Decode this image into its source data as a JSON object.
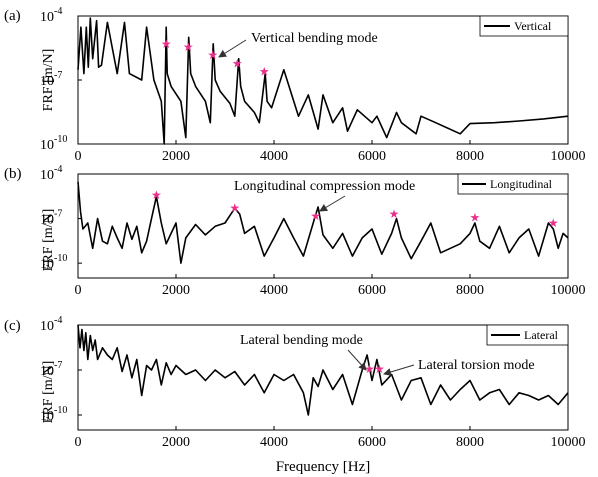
{
  "figure": {
    "xlabel": "Frequency  [Hz]",
    "colors": {
      "line": "#000000",
      "marker": "#e8308c",
      "frame": "#000000",
      "background": "#ffffff"
    }
  },
  "chart_data": [
    {
      "type": "line",
      "panel_label": "(a)",
      "ylabel": "FRF  [m/N]",
      "xlabel": "",
      "y_scale": "log",
      "xlim": [
        0,
        10000
      ],
      "ylim": [
        1e-10,
        0.0001
      ],
      "x_ticks": [
        "0",
        "2000",
        "4000",
        "6000",
        "8000",
        "10000"
      ],
      "y_ticks": [
        {
          "base": "10",
          "exp": "-4"
        },
        {
          "base": "10",
          "exp": "-7"
        },
        {
          "base": "10",
          "exp": "-10"
        }
      ],
      "legend": {
        "label": "Vertical",
        "position": "top-right"
      },
      "series": [
        {
          "name": "Vertical",
          "x": [
            0,
            60,
            120,
            170,
            210,
            250,
            300,
            380,
            420,
            480,
            600,
            800,
            950,
            1050,
            1300,
            1400,
            1550,
            1700,
            1760,
            1800,
            1820,
            1900,
            2100,
            2200,
            2260,
            2300,
            2400,
            2600,
            2700,
            2760,
            2800,
            2900,
            3100,
            3200,
            3280,
            3320,
            3400,
            3600,
            3700,
            3820,
            3860,
            3950,
            4200,
            4500,
            4700,
            4900,
            5000,
            5200,
            5400,
            5500,
            5700,
            6000,
            6100,
            6300,
            6500,
            6600,
            6900,
            7000,
            7300,
            7800,
            8000,
            8500,
            9000,
            9500,
            10000
          ],
          "y": [
            3e-07,
            3e-05,
            2e-07,
            3e-05,
            4e-07,
            8e-05,
            1e-06,
            6e-05,
            4e-07,
            5e-07,
            5e-05,
            2e-07,
            5e-05,
            2e-07,
            1e-07,
            3e-05,
            1e-07,
            1e-08,
            1e-10,
            3e-05,
            2e-07,
            5e-08,
            1e-08,
            2e-10,
            1e-05,
            2e-07,
            5e-08,
            1e-08,
            1e-09,
            5e-06,
            1e-07,
            3e-08,
            8e-09,
            2e-09,
            1e-06,
            5e-08,
            1e-08,
            3e-09,
            1e-09,
            2e-07,
            1e-08,
            5e-09,
            3e-07,
            2e-09,
            2e-08,
            5e-10,
            2e-08,
            1e-09,
            5e-09,
            4e-10,
            4e-09,
            1e-09,
            2e-09,
            2e-10,
            3e-09,
            1e-09,
            3e-10,
            2e-09,
            1e-09,
            3e-10,
            9e-10,
            1e-09,
            1.2e-09,
            1.5e-09,
            2e-09
          ]
        }
      ],
      "markers": {
        "symbol": "★",
        "x": [
          1800,
          2250,
          2750,
          3250,
          3800
        ],
        "y": [
          5e-06,
          3.5e-06,
          1.5e-06,
          6e-07,
          2.5e-07
        ]
      },
      "annotations": [
        {
          "text": "Vertical  bending  mode",
          "points_to": {
            "x": 2750,
            "y": 1.5e-06
          }
        }
      ]
    },
    {
      "type": "line",
      "panel_label": "(b)",
      "ylabel": "FRF  [m/N]",
      "xlabel": "",
      "y_scale": "log",
      "xlim": [
        0,
        10000
      ],
      "ylim": [
        1e-11,
        0.0001
      ],
      "x_ticks": [
        "0",
        "2000",
        "4000",
        "6000",
        "8000",
        "10000"
      ],
      "y_ticks": [
        {
          "base": "10",
          "exp": "-4"
        },
        {
          "base": "10",
          "exp": "-7"
        },
        {
          "base": "10",
          "exp": "-10"
        }
      ],
      "legend": {
        "label": "Longitudinal",
        "position": "top-right"
      },
      "series": [
        {
          "name": "Longitudinal",
          "x": [
            0,
            50,
            100,
            200,
            300,
            400,
            500,
            600,
            700,
            800,
            900,
            1000,
            1100,
            1200,
            1300,
            1400,
            1500,
            1600,
            1700,
            1800,
            1900,
            2000,
            2100,
            2200,
            2400,
            2600,
            2800,
            3000,
            3200,
            3300,
            3400,
            3600,
            3800,
            4000,
            4200,
            4400,
            4600,
            4800,
            4900,
            5000,
            5200,
            5400,
            5600,
            5800,
            6000,
            6200,
            6400,
            6500,
            6600,
            6800,
            7000,
            7200,
            7400,
            7600,
            7800,
            8000,
            8100,
            8200,
            8400,
            8600,
            8800,
            9000,
            9200,
            9400,
            9600,
            9700,
            9800,
            9900,
            10000
          ],
          "y": [
            3e-05,
            3e-07,
            2e-08,
            5e-08,
            1e-09,
            1e-07,
            3e-09,
            2e-09,
            3e-08,
            5e-09,
            1e-09,
            5e-08,
            4e-09,
            3e-08,
            5e-10,
            3e-09,
            1e-07,
            3e-06,
            5e-08,
            2e-09,
            1e-08,
            5e-08,
            1e-10,
            5e-09,
            4e-08,
            8e-09,
            3e-08,
            5e-08,
            5e-07,
            2e-07,
            1e-08,
            3e-08,
            3e-10,
            5e-09,
            1e-07,
            5e-09,
            3e-10,
            5e-08,
            6e-07,
            8e-09,
            1e-09,
            1e-08,
            3e-10,
            5e-09,
            2e-08,
            4e-10,
            1e-08,
            1e-07,
            5e-09,
            2e-10,
            3e-09,
            5e-08,
            5e-10,
            1e-09,
            2e-09,
            1e-08,
            5e-08,
            3e-09,
            1e-09,
            3e-08,
            5e-10,
            5e-09,
            2e-08,
            3e-10,
            5e-08,
            2e-08,
            1e-09,
            1e-08,
            5e-09
          ]
        }
      ],
      "markers": {
        "symbol": "★",
        "x": [
          1600,
          3200,
          4850,
          6450,
          8100,
          9700
        ],
        "y": [
          4e-06,
          5e-07,
          1.5e-07,
          2e-07,
          1.2e-07,
          5e-08
        ]
      },
      "annotations": [
        {
          "text": "Longitudinal  compression  mode",
          "points_to": {
            "x": 4900,
            "y": 2e-07
          }
        }
      ]
    },
    {
      "type": "line",
      "panel_label": "(c)",
      "ylabel": "FRF  [m/N]",
      "xlabel": "Frequency  [Hz]",
      "y_scale": "log",
      "xlim": [
        0,
        10000
      ],
      "ylim": [
        1e-11,
        0.0001
      ],
      "x_ticks": [
        "0",
        "2000",
        "4000",
        "6000",
        "8000",
        "10000"
      ],
      "y_ticks": [
        {
          "base": "10",
          "exp": "-4"
        },
        {
          "base": "10",
          "exp": "-7"
        },
        {
          "base": "10",
          "exp": "-10"
        }
      ],
      "legend": {
        "label": "Lateral",
        "position": "top-right"
      },
      "series": [
        {
          "name": "Lateral",
          "x": [
            0,
            40,
            80,
            120,
            160,
            200,
            250,
            300,
            350,
            400,
            500,
            600,
            700,
            800,
            900,
            1000,
            1100,
            1200,
            1300,
            1400,
            1500,
            1600,
            1700,
            1800,
            1900,
            2000,
            2200,
            2400,
            2600,
            2800,
            3000,
            3200,
            3400,
            3600,
            3800,
            4000,
            4200,
            4400,
            4600,
            4700,
            4800,
            4900,
            5000,
            5200,
            5400,
            5600,
            5800,
            5900,
            6000,
            6100,
            6200,
            6400,
            6600,
            6800,
            7000,
            7200,
            7400,
            7600,
            7800,
            8000,
            8200,
            8400,
            8600,
            8800,
            9000,
            9200,
            9400,
            9600,
            9800,
            10000
          ],
          "y": [
            0.0001,
            3e-06,
            5e-05,
            2e-06,
            3e-05,
            5e-07,
            2e-05,
            2e-06,
            1e-05,
            5e-07,
            3e-06,
            1e-06,
            5e-07,
            3e-06,
            8e-08,
            1e-06,
            3e-08,
            5e-07,
            2e-09,
            2e-07,
            1e-07,
            5e-07,
            1e-08,
            3e-07,
            5e-08,
            2e-07,
            5e-08,
            1e-07,
            2e-08,
            1e-07,
            3e-08,
            8e-08,
            1e-08,
            5e-08,
            3e-09,
            5e-08,
            2e-08,
            5e-08,
            3e-09,
            1e-10,
            3e-08,
            8e-09,
            1e-07,
            5e-09,
            5e-08,
            5e-10,
            1e-07,
            1e-06,
            2e-08,
            5e-07,
            1e-08,
            5e-08,
            1e-09,
            2e-08,
            3e-08,
            5e-10,
            1e-08,
            1e-09,
            5e-09,
            2e-08,
            1e-09,
            3e-09,
            5e-09,
            5e-10,
            3e-09,
            2e-09,
            1e-09,
            2e-09,
            5e-10,
            3e-09
          ]
        }
      ],
      "markers": {
        "symbol": "★",
        "x": [
          5950,
          6150
        ],
        "y": [
          1.2e-07,
          1.2e-07
        ]
      },
      "annotations": [
        {
          "text": "Lateral  bending  mode",
          "points_to": {
            "x": 5950,
            "y": 1.2e-07
          }
        },
        {
          "text": "Lateral  torsion  mode",
          "points_to": {
            "x": 6150,
            "y": 1.2e-07
          }
        }
      ]
    }
  ]
}
